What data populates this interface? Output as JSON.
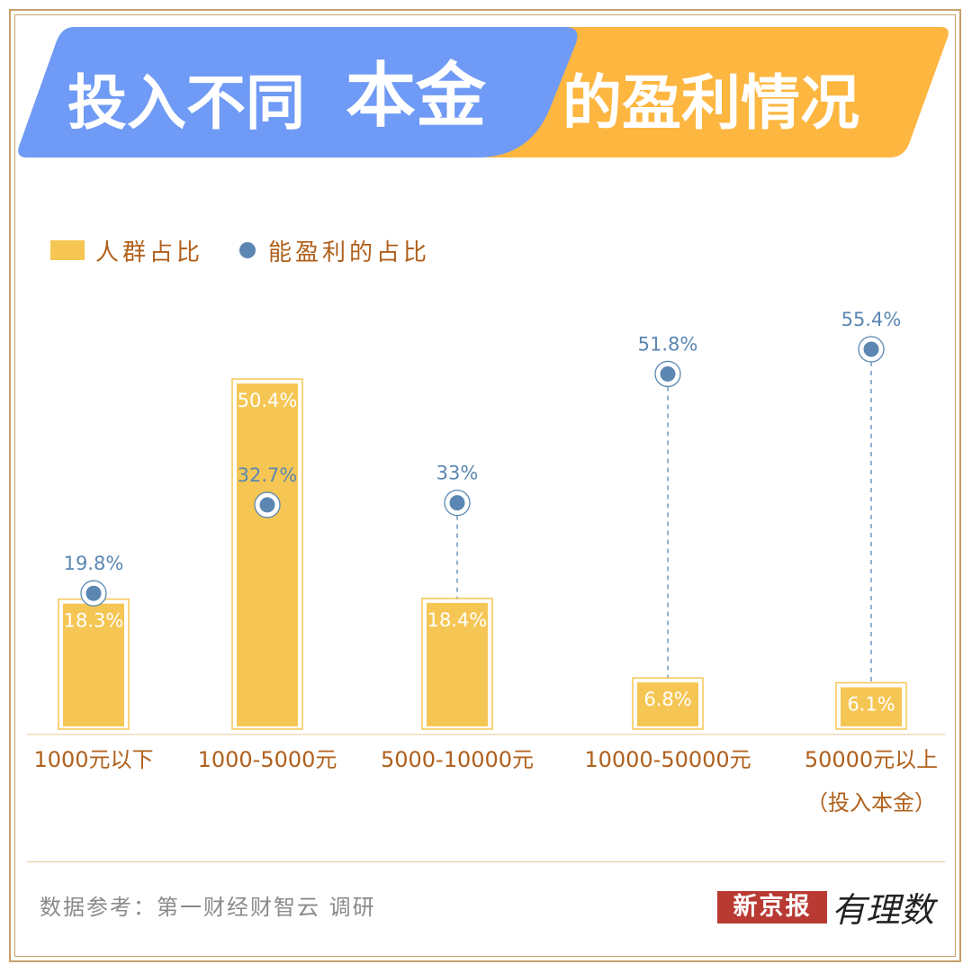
{
  "title": {
    "part1": "投入不同",
    "part2": "本金",
    "part3": "的盈利情况"
  },
  "colors": {
    "banner_blue": "#6f9af5",
    "banner_orange": "#fdb640",
    "bar": "#f5c653",
    "dot": "#5b87b2",
    "category_text": "#b0601c",
    "frame": "#c8a06a"
  },
  "legend": {
    "bar_label": "人群占比",
    "dot_label": "能盈利的占比",
    "placement": "top-left"
  },
  "chart_data": {
    "type": "bar",
    "categories": [
      "1000元以下",
      "1000-5000元",
      "5000-10000元",
      "10000-50000元",
      "50000元以上"
    ],
    "category_note": "（投入本金）",
    "series": [
      {
        "name": "人群占比",
        "type": "bar",
        "values": [
          18.3,
          50.4,
          18.4,
          6.8,
          6.1
        ],
        "labels": [
          "18.3%",
          "50.4%",
          "18.4%",
          "6.8%",
          "6.1%"
        ]
      },
      {
        "name": "能盈利的占比",
        "type": "scatter",
        "values": [
          19.8,
          32.7,
          33,
          51.8,
          55.4
        ],
        "labels": [
          "19.8%",
          "32.7%",
          "33%",
          "51.8%",
          "55.4%"
        ]
      }
    ],
    "ylim": [
      0,
      60
    ],
    "grid": false
  },
  "footer": {
    "source": "数据参考：第一财经财智云 调研",
    "brand": "新京报",
    "brand_script": "有理数"
  }
}
